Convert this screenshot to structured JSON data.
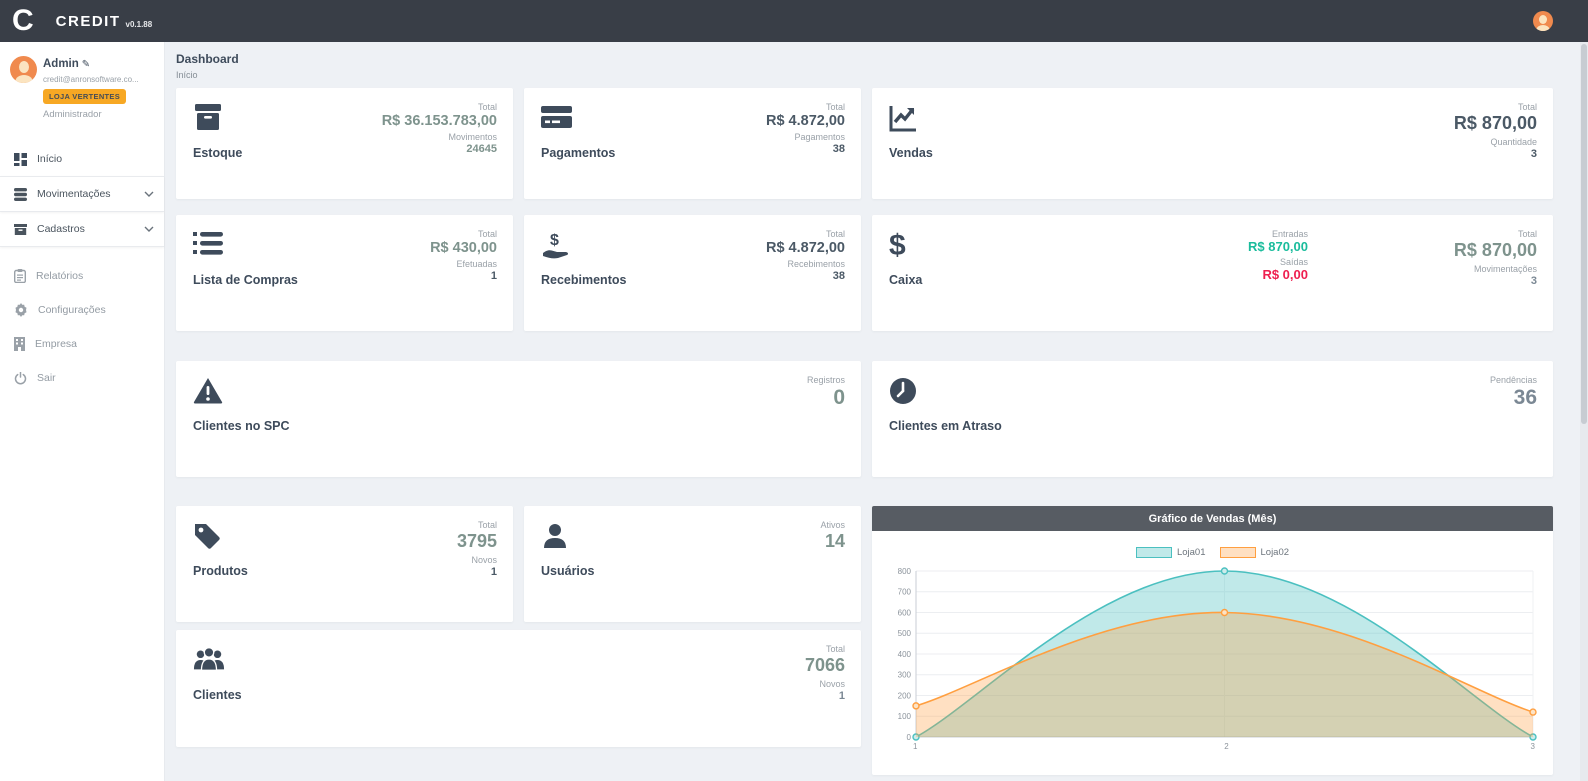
{
  "app": {
    "logo_letter": "C",
    "name": "CREDIT",
    "version": "v0.1.88"
  },
  "colors": {
    "topbar": "#393e47",
    "accent_orange": "#f7a824",
    "positive_green": "#1abc9c",
    "negative_red": "#ee1f4f",
    "navy_text": "#3e4b5b",
    "muted_value": "#7e938d",
    "chart_header": "#575c63"
  },
  "sidebar": {
    "user": {
      "name": "Admin",
      "edit_icon": "pencil-icon",
      "email": "credit@anronsoftware.co...",
      "badge": "LOJA VERTENTES",
      "role": "Administrador"
    },
    "items": [
      {
        "label": "Início",
        "icon": "grid-icon"
      },
      {
        "label": "Movimentações",
        "icon": "database-icon",
        "expandable": true
      },
      {
        "label": "Cadastros",
        "icon": "archive-icon",
        "expandable": true
      },
      {
        "label": "Relatórios",
        "icon": "clipboard-icon"
      },
      {
        "label": "Configurações",
        "icon": "gear-icon"
      },
      {
        "label": "Empresa",
        "icon": "building-icon"
      },
      {
        "label": "Sair",
        "icon": "power-icon"
      }
    ]
  },
  "page": {
    "title": "Dashboard",
    "breadcrumb": "Início"
  },
  "cards": {
    "estoque": {
      "label": "Estoque",
      "icon": "box-icon",
      "stats": [
        {
          "label": "Total",
          "value": "R$ 36.153.783,00"
        },
        {
          "label": "Movimentos",
          "value": "24645"
        }
      ]
    },
    "pagamentos": {
      "label": "Pagamentos",
      "icon": "credit-card-icon",
      "stats": [
        {
          "label": "Total",
          "value": "R$ 4.872,00"
        },
        {
          "label": "Pagamentos",
          "value": "38"
        }
      ]
    },
    "vendas": {
      "label": "Vendas",
      "icon": "chart-line-icon",
      "stats": [
        {
          "label": "Total",
          "value": "R$ 870,00"
        },
        {
          "label": "Quantidade",
          "value": "3"
        }
      ]
    },
    "lista_compras": {
      "label": "Lista de Compras",
      "icon": "list-icon",
      "stats": [
        {
          "label": "Total",
          "value": "R$ 430,00"
        },
        {
          "label": "Efetuadas",
          "value": "1"
        }
      ]
    },
    "recebimentos": {
      "label": "Recebimentos",
      "icon": "hand-dollar-icon",
      "stats": [
        {
          "label": "Total",
          "value": "R$ 4.872,00"
        },
        {
          "label": "Recebimentos",
          "value": "38"
        }
      ]
    },
    "caixa": {
      "label": "Caixa",
      "icon": "dollar-icon",
      "flow_stats": [
        {
          "label": "Entradas",
          "value": "R$ 870,00",
          "color": "#1abc9c"
        },
        {
          "label": "Saídas",
          "value": "R$ 0,00",
          "color": "#ee1f4f"
        }
      ],
      "stats": [
        {
          "label": "Total",
          "value": "R$ 870,00"
        },
        {
          "label": "Movimentações",
          "value": "3"
        }
      ]
    },
    "clientes_spc": {
      "label": "Clientes no SPC",
      "icon": "warning-triangle-icon",
      "stats": [
        {
          "label": "Registros",
          "value": "0"
        }
      ]
    },
    "clientes_atraso": {
      "label": "Clientes em Atraso",
      "icon": "clock-icon",
      "stats": [
        {
          "label": "Pendências",
          "value": "36"
        }
      ]
    },
    "produtos": {
      "label": "Produtos",
      "icon": "tag-icon",
      "stats": [
        {
          "label": "Total",
          "value": "3795"
        },
        {
          "label": "Novos",
          "value": "1"
        }
      ]
    },
    "usuarios": {
      "label": "Usuários",
      "icon": "user-icon",
      "stats": [
        {
          "label": "Ativos",
          "value": "14"
        }
      ]
    },
    "clientes": {
      "label": "Clientes",
      "icon": "users-icon",
      "stats": [
        {
          "label": "Total",
          "value": "7066"
        },
        {
          "label": "Novos",
          "value": "1"
        }
      ]
    }
  },
  "chart_data": {
    "type": "area",
    "title": "Gráfico de Vendas (Mês)",
    "x": [
      "1",
      "2",
      "3"
    ],
    "series": [
      {
        "name": "Loja01",
        "values": [
          0,
          800,
          0
        ],
        "color": "#4bc0c0",
        "fill": "rgba(75,192,192,0.35)",
        "point_fill": "#cdeceb"
      },
      {
        "name": "Loja02",
        "values": [
          150,
          600,
          120
        ],
        "color": "#ff9f40",
        "fill": "rgba(255,159,64,0.32)",
        "point_fill": "#fde3c5"
      }
    ],
    "ylim": [
      0,
      800
    ],
    "ytick_step": 100,
    "grid": true,
    "legend_position": "top"
  }
}
